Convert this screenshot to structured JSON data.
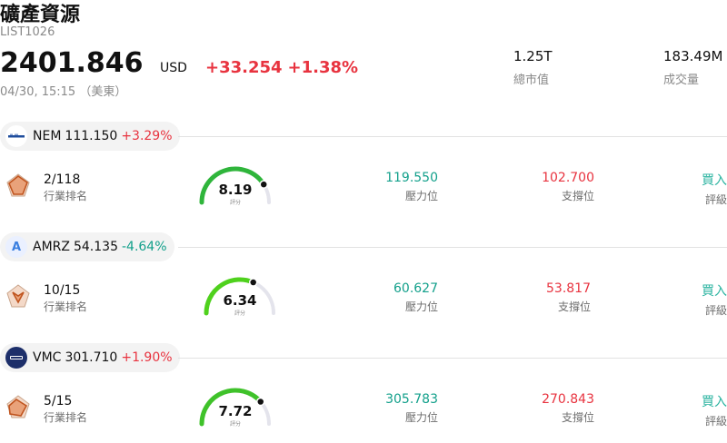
{
  "header": {
    "title": "礦產資源",
    "code": "LIST1026",
    "price": "2401.846",
    "currency": "USD",
    "change": "+33.254",
    "change_pct": "+1.38%",
    "time": "04/30, 15:15 （美東）",
    "market_cap_value": "1.25T",
    "market_cap_label": "總市值",
    "volume_value": "183.49M",
    "volume_label": "成交量"
  },
  "colors": {
    "up": "#e8333f",
    "down": "#13a08b",
    "rating": "#2ab3a0"
  },
  "stocks": [
    {
      "symbol": "NEM",
      "price": "111.150",
      "change": "+3.29%",
      "direction": "up",
      "logo": "newmont-logo",
      "rank": "2/118",
      "rank_label": "行業排名",
      "score": "8.19",
      "score_label": "評分",
      "score_fraction": 0.82,
      "resistance": "119.550",
      "resistance_label": "壓力位",
      "support": "102.700",
      "support_label": "支撐位",
      "rating": "買入",
      "rating_label": "評級"
    },
    {
      "symbol": "AMRZ",
      "price": "54.135",
      "change": "-4.64%",
      "direction": "down",
      "logo": "amrize-logo",
      "logo_letter": "A",
      "rank": "10/15",
      "rank_label": "行業排名",
      "score": "6.34",
      "score_label": "評分",
      "score_fraction": 0.63,
      "resistance": "60.627",
      "resistance_label": "壓力位",
      "support": "53.817",
      "support_label": "支撐位",
      "rating": "買入",
      "rating_label": "評級"
    },
    {
      "symbol": "VMC",
      "price": "301.710",
      "change": "+1.90%",
      "direction": "up",
      "logo": "vulcan-logo",
      "rank": "5/15",
      "rank_label": "行業排名",
      "score": "7.72",
      "score_label": "評分",
      "score_fraction": 0.77,
      "resistance": "305.783",
      "resistance_label": "壓力位",
      "support": "270.843",
      "support_label": "支撐位",
      "rating": "買入",
      "rating_label": "評級"
    }
  ]
}
